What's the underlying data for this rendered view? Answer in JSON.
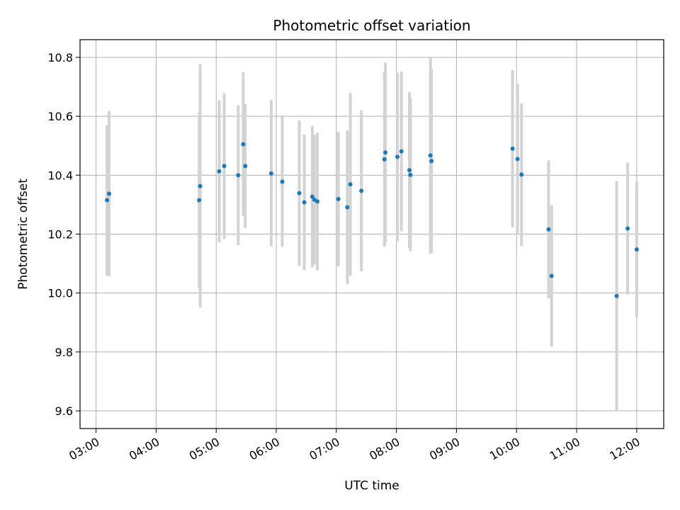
{
  "chart_data": {
    "type": "scatter",
    "title": "Photometric offset variation",
    "xlabel": "UTC time",
    "ylabel": "Photometric offset",
    "x_tick_labels": [
      "03:00",
      "04:00",
      "05:00",
      "06:00",
      "07:00",
      "08:00",
      "09:00",
      "10:00",
      "11:00",
      "12:00"
    ],
    "y_ticks": [
      9.6,
      9.8,
      10.0,
      10.2,
      10.4,
      10.6,
      10.8
    ],
    "y_tick_labels": [
      "9.6",
      "9.8",
      "10.0",
      "10.2",
      "10.4",
      "10.6",
      "10.8"
    ],
    "xlim": [
      "02:44",
      "12:27"
    ],
    "ylim": [
      9.54,
      10.86
    ],
    "grid": true,
    "point_color": "#1f77b4",
    "errorbar_color": "#d3d3d3",
    "points": [
      {
        "x": "03:11",
        "y": 10.315,
        "lo": 10.06,
        "hi": 10.57
      },
      {
        "x": "03:13",
        "y": 10.337,
        "lo": 10.057,
        "hi": 10.618
      },
      {
        "x": "04:43",
        "y": 10.315,
        "lo": 10.018,
        "hi": 10.612
      },
      {
        "x": "04:44",
        "y": 10.363,
        "lo": 9.951,
        "hi": 10.776
      },
      {
        "x": "05:03",
        "y": 10.413,
        "lo": 10.172,
        "hi": 10.654
      },
      {
        "x": "05:08",
        "y": 10.431,
        "lo": 10.183,
        "hi": 10.679
      },
      {
        "x": "05:22",
        "y": 10.4,
        "lo": 10.162,
        "hi": 10.638
      },
      {
        "x": "05:27",
        "y": 10.505,
        "lo": 10.262,
        "hi": 10.749
      },
      {
        "x": "05:29",
        "y": 10.431,
        "lo": 10.221,
        "hi": 10.641
      },
      {
        "x": "05:55",
        "y": 10.406,
        "lo": 10.158,
        "hi": 10.654
      },
      {
        "x": "06:06",
        "y": 10.378,
        "lo": 10.157,
        "hi": 10.599
      },
      {
        "x": "06:23",
        "y": 10.339,
        "lo": 10.092,
        "hi": 10.586
      },
      {
        "x": "06:28",
        "y": 10.308,
        "lo": 10.078,
        "hi": 10.538
      },
      {
        "x": "06:36",
        "y": 10.327,
        "lo": 10.088,
        "hi": 10.566
      },
      {
        "x": "06:38",
        "y": 10.317,
        "lo": 10.097,
        "hi": 10.537
      },
      {
        "x": "06:41",
        "y": 10.311,
        "lo": 10.078,
        "hi": 10.544
      },
      {
        "x": "07:02",
        "y": 10.319,
        "lo": 10.091,
        "hi": 10.547
      },
      {
        "x": "07:11",
        "y": 10.291,
        "lo": 10.03,
        "hi": 10.552
      },
      {
        "x": "07:14",
        "y": 10.369,
        "lo": 10.059,
        "hi": 10.679
      },
      {
        "x": "07:25",
        "y": 10.347,
        "lo": 10.074,
        "hi": 10.62
      },
      {
        "x": "07:48",
        "y": 10.454,
        "lo": 10.157,
        "hi": 10.751
      },
      {
        "x": "07:49",
        "y": 10.477,
        "lo": 10.172,
        "hi": 10.782
      },
      {
        "x": "08:01",
        "y": 10.462,
        "lo": 10.176,
        "hi": 10.748
      },
      {
        "x": "08:05",
        "y": 10.481,
        "lo": 10.21,
        "hi": 10.752
      },
      {
        "x": "08:13",
        "y": 10.417,
        "lo": 10.152,
        "hi": 10.682
      },
      {
        "x": "08:14",
        "y": 10.401,
        "lo": 10.141,
        "hi": 10.661
      },
      {
        "x": "08:34",
        "y": 10.467,
        "lo": 10.134,
        "hi": 10.8
      },
      {
        "x": "08:35",
        "y": 10.448,
        "lo": 10.136,
        "hi": 10.76
      },
      {
        "x": "09:56",
        "y": 10.49,
        "lo": 10.223,
        "hi": 10.757
      },
      {
        "x": "10:01",
        "y": 10.455,
        "lo": 10.2,
        "hi": 10.71
      },
      {
        "x": "10:05",
        "y": 10.402,
        "lo": 10.16,
        "hi": 10.644
      },
      {
        "x": "10:32",
        "y": 10.216,
        "lo": 9.982,
        "hi": 10.45
      },
      {
        "x": "10:35",
        "y": 10.058,
        "lo": 9.818,
        "hi": 10.298
      },
      {
        "x": "11:40",
        "y": 9.99,
        "lo": 9.6,
        "hi": 10.38
      },
      {
        "x": "11:51",
        "y": 10.219,
        "lo": 9.995,
        "hi": 10.443
      },
      {
        "x": "12:00",
        "y": 10.148,
        "lo": 9.918,
        "hi": 10.378
      }
    ]
  }
}
